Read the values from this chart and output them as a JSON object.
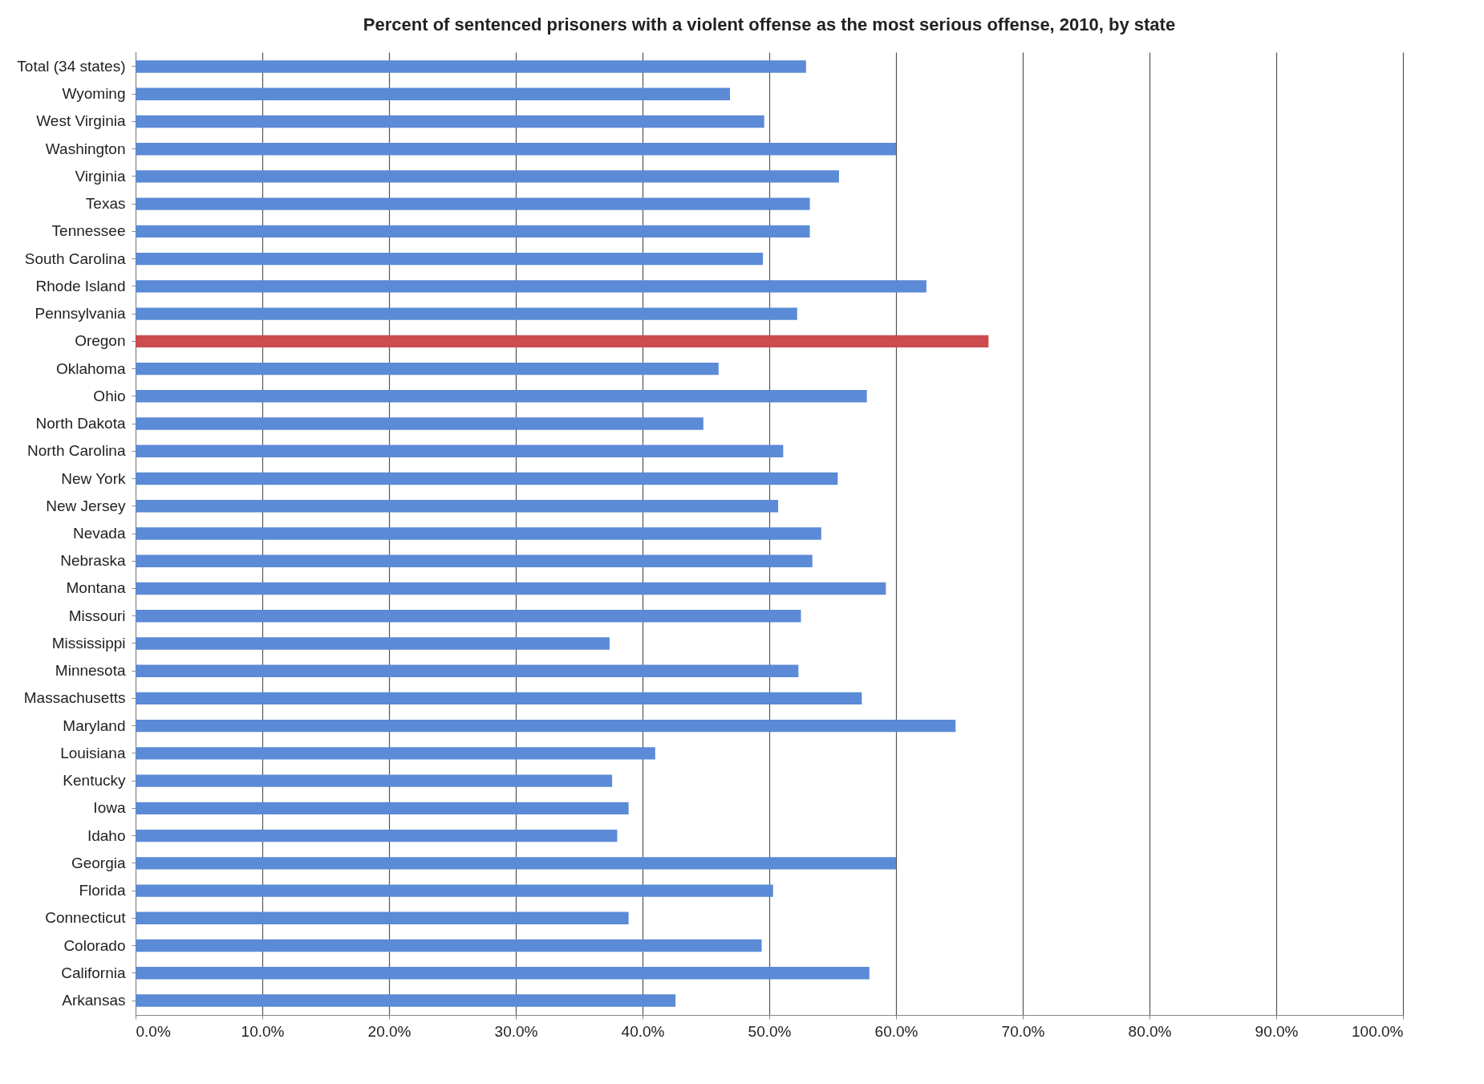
{
  "chart_data": {
    "type": "bar",
    "orientation": "horizontal",
    "title": "Percent of sentenced prisoners with a violent offense as the most serious offense, 2010, by state",
    "categories": [
      "Total (34 states)",
      "Wyoming",
      "West Virginia",
      "Washington",
      "Virginia",
      "Texas",
      "Tennessee",
      "South Carolina",
      "Rhode Island",
      "Pennsylvania",
      "Oregon",
      "Oklahoma",
      "Ohio",
      "North Dakota",
      "North Carolina",
      "New York",
      "New Jersey",
      "Nevada",
      "Nebraska",
      "Montana",
      "Missouri",
      "Mississippi",
      "Minnesota",
      "Massachusetts",
      "Maryland",
      "Louisiana",
      "Kentucky",
      "Iowa",
      "Idaho",
      "Georgia",
      "Florida",
      "Connecticut",
      "Colorado",
      "California",
      "Arkansas"
    ],
    "values": [
      52.9,
      46.9,
      49.6,
      60.0,
      55.5,
      53.2,
      53.2,
      49.5,
      62.4,
      52.2,
      67.3,
      46.0,
      57.7,
      44.8,
      51.1,
      55.4,
      50.7,
      54.1,
      53.4,
      59.2,
      52.5,
      37.4,
      52.3,
      57.3,
      64.7,
      41.0,
      37.6,
      38.9,
      38.0,
      60.0,
      50.3,
      38.9,
      49.4,
      57.9,
      42.6
    ],
    "colors": [
      "#5b8ad6",
      "#5b8ad6",
      "#5b8ad6",
      "#5b8ad6",
      "#5b8ad6",
      "#5b8ad6",
      "#5b8ad6",
      "#5b8ad6",
      "#5b8ad6",
      "#5b8ad6",
      "#cc4b4f",
      "#5b8ad6",
      "#5b8ad6",
      "#5b8ad6",
      "#5b8ad6",
      "#5b8ad6",
      "#5b8ad6",
      "#5b8ad6",
      "#5b8ad6",
      "#5b8ad6",
      "#5b8ad6",
      "#5b8ad6",
      "#5b8ad6",
      "#5b8ad6",
      "#5b8ad6",
      "#5b8ad6",
      "#5b8ad6",
      "#5b8ad6",
      "#5b8ad6",
      "#5b8ad6",
      "#5b8ad6",
      "#5b8ad6",
      "#5b8ad6",
      "#5b8ad6",
      "#5b8ad6"
    ],
    "xlim": [
      0,
      100
    ],
    "xticks": [
      {
        "value": 0,
        "label": "0.0%"
      },
      {
        "value": 10,
        "label": "10.0%"
      },
      {
        "value": 20,
        "label": "20.0%"
      },
      {
        "value": 30,
        "label": "30.0%"
      },
      {
        "value": 40,
        "label": "40.0%"
      },
      {
        "value": 50,
        "label": "50.0%"
      },
      {
        "value": 60,
        "label": "60.0%"
      },
      {
        "value": 70,
        "label": "70.0%"
      },
      {
        "value": 80,
        "label": "80.0%"
      },
      {
        "value": 90,
        "label": "90.0%"
      },
      {
        "value": 100,
        "label": "100.0%"
      }
    ],
    "grid": "x"
  }
}
